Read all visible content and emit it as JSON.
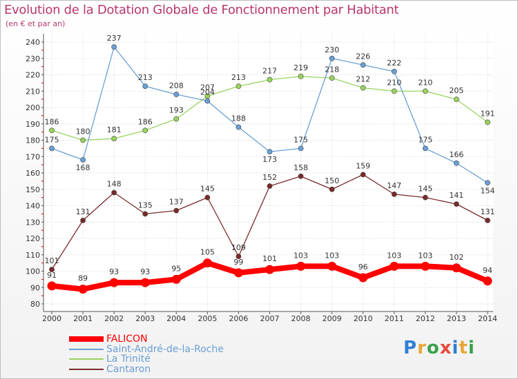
{
  "title": "Evolution de la Dotation Globale de Fonctionnement par Habitant",
  "subtitle": "(en € et par an)",
  "logo": {
    "text": "Proxiti",
    "colors": [
      "#2f7fd6",
      "#e7a83a",
      "#3aa14a",
      "#e74c3c",
      "#2f7fd6",
      "#e7a83a",
      "#3aa14a"
    ]
  },
  "chart_data": {
    "type": "line",
    "x": [
      "2000",
      "2001",
      "2002",
      "2003",
      "2004",
      "2005",
      "2006",
      "2007",
      "2008",
      "2009",
      "2010",
      "2011",
      "2012",
      "2013",
      "2014"
    ],
    "ylim": [
      80,
      240
    ],
    "yticks": [
      80,
      90,
      100,
      110,
      120,
      130,
      140,
      150,
      160,
      170,
      180,
      190,
      200,
      210,
      220,
      230,
      240
    ],
    "grid": true,
    "series": [
      {
        "name": "FALICON",
        "color": "#ff0000",
        "values": [
          91,
          89,
          93,
          93,
          95,
          105,
          99,
          101,
          103,
          103,
          96,
          103,
          103,
          102,
          94
        ]
      },
      {
        "name": "Saint-André-de-la-Roche",
        "color": "#6a9fd4",
        "values": [
          175,
          168,
          237,
          213,
          208,
          204,
          188,
          173,
          175,
          230,
          226,
          222,
          175,
          166,
          154
        ]
      },
      {
        "name": "La Trinité",
        "color": "#99d25e",
        "values": [
          186,
          180,
          181,
          186,
          193,
          207,
          213,
          217,
          219,
          218,
          212,
          210,
          210,
          205,
          191
        ]
      },
      {
        "name": "Cantaron",
        "color": "#7a2a2a",
        "values": [
          101,
          131,
          148,
          135,
          137,
          145,
          109,
          152,
          158,
          150,
          159,
          147,
          145,
          141,
          131
        ]
      }
    ]
  }
}
